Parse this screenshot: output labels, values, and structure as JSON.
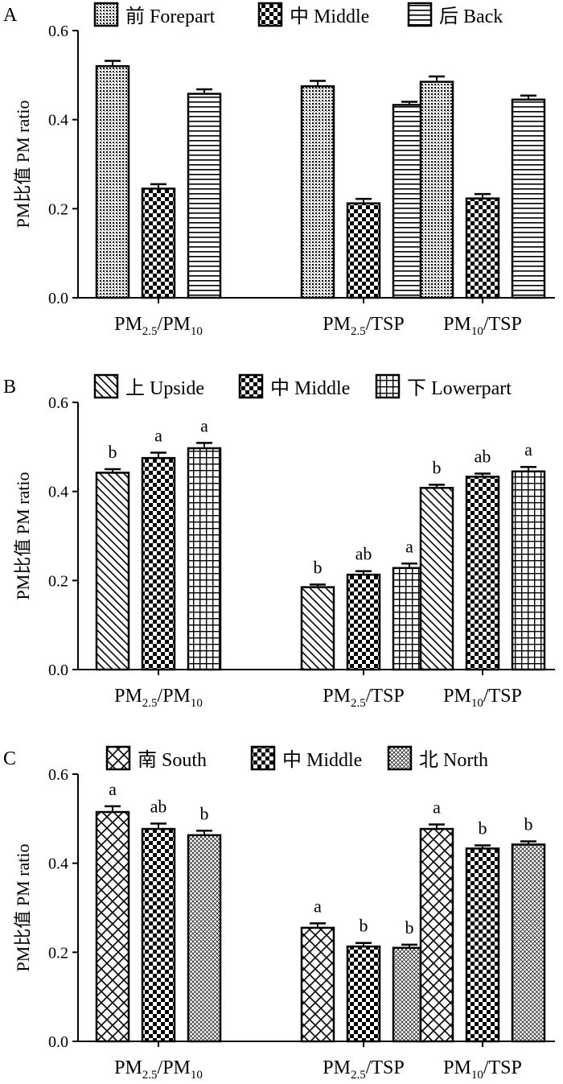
{
  "chart_data": [
    {
      "type": "bar",
      "panel": "A",
      "ylabel": "PM比值  PM ratio",
      "ylim": [
        0,
        0.6
      ],
      "yticks": [
        "0.0",
        "0.2",
        "0.4",
        "0.6"
      ],
      "categories": [
        {
          "main": "PM",
          "sub": "2.5",
          "mid": "/PM",
          "sub2": "10",
          "tail": ""
        },
        {
          "main": "PM",
          "sub": "2.5",
          "mid": "/TSP",
          "sub2": "",
          "tail": ""
        },
        {
          "main": "PM",
          "sub": "10",
          "mid": "/TSP",
          "sub2": "",
          "tail": ""
        }
      ],
      "series": [
        {
          "name": "前 Forepart",
          "pattern": "dots",
          "values": [
            0.52,
            0.475,
            0.485
          ],
          "errors": [
            0.012,
            0.012,
            0.012
          ],
          "labels": [
            "",
            "",
            ""
          ]
        },
        {
          "name": "中 Middle",
          "pattern": "checker",
          "values": [
            0.245,
            0.212,
            0.223
          ],
          "errors": [
            0.01,
            0.01,
            0.01
          ],
          "labels": [
            "",
            "",
            ""
          ]
        },
        {
          "name": "后 Back",
          "pattern": "hlines",
          "values": [
            0.458,
            0.433,
            0.445
          ],
          "errors": [
            0.01,
            0.007,
            0.009
          ],
          "labels": [
            "",
            "",
            ""
          ]
        }
      ]
    },
    {
      "type": "bar",
      "panel": "B",
      "ylabel": "PM比值  PM ratio",
      "ylim": [
        0,
        0.6
      ],
      "yticks": [
        "0.0",
        "0.2",
        "0.4",
        "0.6"
      ],
      "categories": [
        {
          "main": "PM",
          "sub": "2.5",
          "mid": "/PM",
          "sub2": "10",
          "tail": ""
        },
        {
          "main": "PM",
          "sub": "2.5",
          "mid": "/TSP",
          "sub2": "",
          "tail": ""
        },
        {
          "main": "PM",
          "sub": "10",
          "mid": "/TSP",
          "sub2": "",
          "tail": ""
        }
      ],
      "series": [
        {
          "name": "上 Upside",
          "pattern": "diag",
          "values": [
            0.442,
            0.185,
            0.408
          ],
          "errors": [
            0.008,
            0.006,
            0.007
          ],
          "labels": [
            "b",
            "b",
            "b"
          ]
        },
        {
          "name": "中 Middle",
          "pattern": "checker",
          "values": [
            0.475,
            0.213,
            0.433
          ],
          "errors": [
            0.012,
            0.008,
            0.007
          ],
          "labels": [
            "a",
            "ab",
            "ab"
          ]
        },
        {
          "name": "下 Lowerpart",
          "pattern": "grid",
          "values": [
            0.497,
            0.228,
            0.445
          ],
          "errors": [
            0.012,
            0.01,
            0.01
          ],
          "labels": [
            "a",
            "a",
            "a"
          ]
        }
      ]
    },
    {
      "type": "bar",
      "panel": "C",
      "ylabel": "PM比值  PM ratio",
      "ylim": [
        0,
        0.6
      ],
      "yticks": [
        "0.0",
        "0.2",
        "0.4",
        "0.6"
      ],
      "categories": [
        {
          "main": "PM",
          "sub": "2.5",
          "mid": "/PM",
          "sub2": "10",
          "tail": ""
        },
        {
          "main": "PM",
          "sub": "2.5",
          "mid": "/TSP",
          "sub2": "",
          "tail": ""
        },
        {
          "main": "PM",
          "sub": "10",
          "mid": "/TSP",
          "sub2": "",
          "tail": ""
        }
      ],
      "series": [
        {
          "name": "南 South",
          "pattern": "crosshatch",
          "values": [
            0.515,
            0.255,
            0.477
          ],
          "errors": [
            0.013,
            0.01,
            0.01
          ],
          "labels": [
            "a",
            "a",
            "a"
          ]
        },
        {
          "name": "中 Middle",
          "pattern": "checker",
          "values": [
            0.477,
            0.213,
            0.433
          ],
          "errors": [
            0.012,
            0.008,
            0.007
          ],
          "labels": [
            "ab",
            "b",
            "b"
          ]
        },
        {
          "name": "北 North",
          "pattern": "finehatch",
          "values": [
            0.463,
            0.21,
            0.442
          ],
          "errors": [
            0.01,
            0.007,
            0.007
          ],
          "labels": [
            "b",
            "b",
            "b"
          ]
        }
      ]
    }
  ]
}
